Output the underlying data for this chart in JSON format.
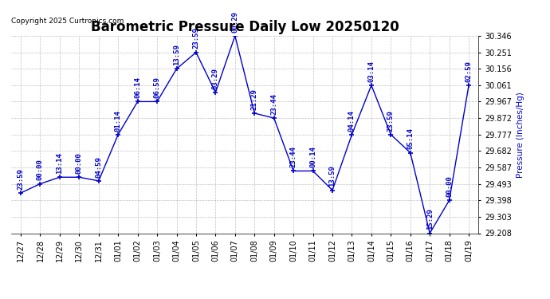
{
  "title": "Barometric Pressure Daily Low 20250120",
  "copyright": "Copyright 2025 Curtronics.com",
  "ylabel": "Pressure (Inches/Hg)",
  "background_color": "#ffffff",
  "line_color": "#0000cc",
  "label_color": "#0000cc",
  "grid_color": "#b0b0b0",
  "x_labels": [
    "12/27",
    "12/28",
    "12/29",
    "12/30",
    "12/31",
    "01/01",
    "01/02",
    "01/03",
    "01/04",
    "01/05",
    "01/06",
    "01/07",
    "01/08",
    "01/09",
    "01/10",
    "01/11",
    "01/12",
    "01/13",
    "01/14",
    "01/15",
    "01/16",
    "01/17",
    "01/18",
    "01/19"
  ],
  "y_values": [
    29.44,
    29.493,
    29.531,
    29.531,
    29.51,
    29.777,
    29.967,
    29.967,
    30.156,
    30.251,
    30.02,
    30.346,
    29.9,
    29.872,
    29.567,
    29.567,
    29.456,
    29.777,
    30.061,
    29.777,
    29.672,
    29.208,
    29.398,
    30.061
  ],
  "point_labels": [
    "23:59",
    "00:00",
    "13:14",
    "00:00",
    "04:59",
    "01:14",
    "06:14",
    "06:59",
    "13:59",
    "23:59",
    "03:29",
    "00:29",
    "21:29",
    "23:44",
    "23:44",
    "00:14",
    "13:59",
    "04:14",
    "03:14",
    "23:59",
    "05:14",
    "15:29",
    "00:00",
    "02:59"
  ],
  "ylim_min": 29.208,
  "ylim_max": 30.346,
  "yticks": [
    29.208,
    29.303,
    29.398,
    29.493,
    29.587,
    29.682,
    29.777,
    29.872,
    29.967,
    30.061,
    30.156,
    30.251,
    30.346
  ],
  "title_fontsize": 12,
  "label_fontsize": 7,
  "point_label_fontsize": 6.5,
  "copyright_fontsize": 6.5,
  "ylabel_fontsize": 7.5
}
